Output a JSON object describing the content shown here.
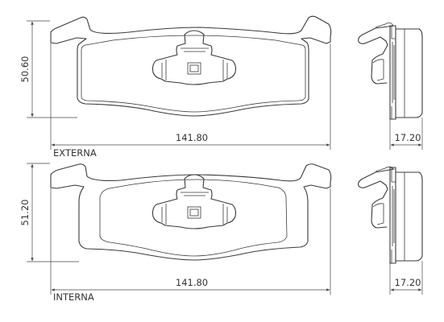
{
  "views": [
    {
      "id": "externa",
      "label": "EXTERNA",
      "height_dim": "50.60",
      "width_dim": "141.80",
      "thickness_dim": "17.20"
    },
    {
      "id": "interna",
      "label": "INTERNA",
      "height_dim": "51.20",
      "width_dim": "141.80",
      "thickness_dim": "17.20"
    }
  ]
}
